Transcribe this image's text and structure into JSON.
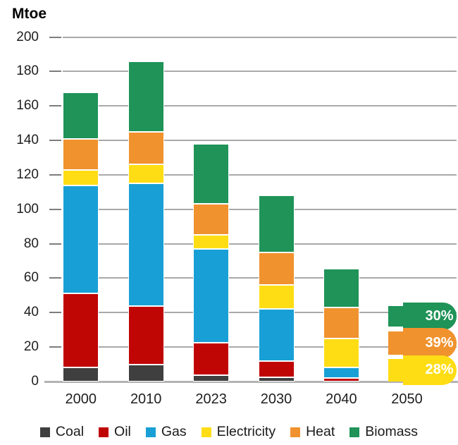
{
  "title": "Mtoe",
  "chart_data": {
    "type": "bar",
    "stacked": true,
    "title": "Mtoe",
    "ylabel": "Mtoe",
    "ylim": [
      0,
      200
    ],
    "ytick_step": 20,
    "ytick_labels": [
      "0",
      "20",
      "40",
      "60",
      "80",
      "100",
      "120",
      "140",
      "160",
      "180",
      "200"
    ],
    "grid": true,
    "legend_position": "bottom",
    "categories": [
      "2000",
      "2010",
      "2023",
      "2030",
      "2040",
      "2050"
    ],
    "series": [
      {
        "name": "Coal",
        "color": "#3f3f3f",
        "values": [
          8,
          10,
          3.5,
          2.5,
          0,
          null
        ]
      },
      {
        "name": "Oil",
        "color": "#c00505",
        "values": [
          43,
          34,
          19,
          9.5,
          2,
          null
        ]
      },
      {
        "name": "Gas",
        "color": "#18a0d6",
        "values": [
          63,
          71,
          54.5,
          30,
          6,
          null
        ]
      },
      {
        "name": "Electricity",
        "color": "#ffdd15",
        "values": [
          9,
          11,
          8,
          14,
          17,
          null
        ]
      },
      {
        "name": "Heat",
        "color": "#f0922e",
        "values": [
          18,
          19,
          18,
          19,
          18,
          null
        ]
      },
      {
        "name": "Biomass",
        "color": "#1f9358",
        "values": [
          27,
          41,
          35,
          33,
          22.5,
          null
        ]
      }
    ],
    "totals": [
      168,
      186,
      138,
      108,
      65.5,
      44
    ],
    "pills_2050": [
      {
        "name": "Biomass",
        "label": "30%",
        "color": "#1f9358",
        "from": 32,
        "to": 43.7
      },
      {
        "name": "Heat",
        "label": "39%",
        "color": "#f0922e",
        "from": 15.7,
        "to": 29.1
      },
      {
        "name": "Electricity",
        "label": "28%",
        "color": "#ffdd15",
        "from": 0,
        "to": 13
      }
    ]
  }
}
